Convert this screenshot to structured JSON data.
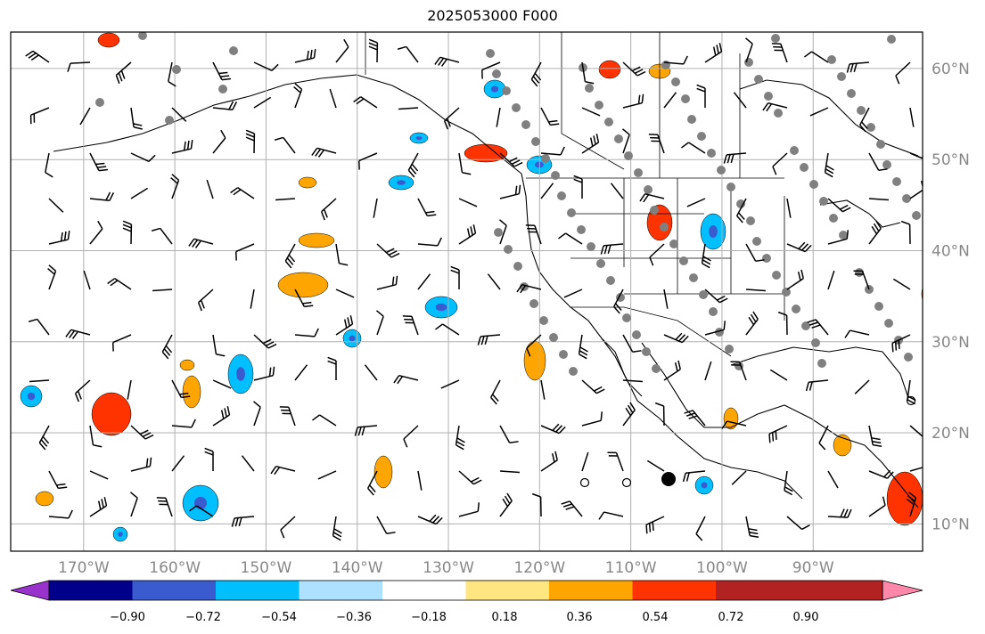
{
  "title": "2025053000 F000",
  "map": {
    "projection": "plate-carree",
    "lon_range": [
      -178,
      -78
    ],
    "lat_range": [
      7,
      64
    ],
    "graticule": true,
    "lon_labels": [
      "170°W",
      "160°W",
      "150°W",
      "140°W",
      "130°W",
      "120°W",
      "110°W",
      "100°W",
      "90°W"
    ],
    "lon_values": [
      -170,
      -160,
      -150,
      -140,
      -130,
      -120,
      -110,
      -100,
      -90
    ],
    "lat_labels": [
      "60°N",
      "50°N",
      "40°N",
      "30°N",
      "20°N",
      "10°N"
    ],
    "lat_values": [
      60,
      50,
      40,
      30,
      20,
      10
    ],
    "barbs": "wind barbs in black across the domain",
    "station_marker_color": "#808080"
  },
  "colorbar": {
    "tick_labels": [
      "−0.90",
      "−0.72",
      "−0.54",
      "−0.36",
      "−0.18",
      "0.18",
      "0.36",
      "0.54",
      "0.72",
      "0.90"
    ],
    "colors": [
      "#9932cc",
      "#00008b",
      "#3a5bd0",
      "#00bfff",
      "#ade1ff",
      "#ffffff",
      "#ffe680",
      "#ffa500",
      "#ff3300",
      "#b22222",
      "#ff88aa"
    ],
    "extend": "both"
  }
}
